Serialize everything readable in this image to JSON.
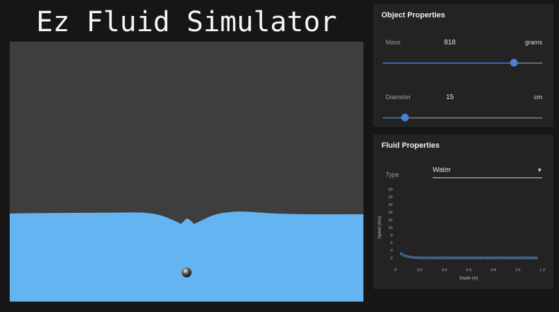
{
  "app": {
    "title": "Ez Fluid Simulator"
  },
  "object_properties": {
    "title": "Object Properties",
    "mass": {
      "label": "Mass",
      "value": "818",
      "unit": "grams",
      "slider_percent": 82
    },
    "diameter": {
      "label": "Diameter",
      "value": "15",
      "unit": "cm",
      "slider_percent": 14
    }
  },
  "fluid_properties": {
    "title": "Fluid Properties",
    "type": {
      "label": "Type",
      "selected": "Water",
      "caret_icon": "chevron-down-icon"
    }
  },
  "chart_data": {
    "type": "line",
    "title": "",
    "xlabel": "Depth (m)",
    "ylabel": "Speed (m/s)",
    "xlim": [
      0,
      1.2
    ],
    "ylim": [
      0,
      20
    ],
    "x_ticks": [
      {
        "v": 0,
        "label": "0"
      },
      {
        "v": 0.2,
        "label": "0.2"
      },
      {
        "v": 0.4,
        "label": "0.4"
      },
      {
        "v": 0.6,
        "label": "0.6"
      },
      {
        "v": 0.8,
        "label": "0.8"
      },
      {
        "v": 1.0,
        "label": "1.0"
      },
      {
        "v": 1.2,
        "label": "1.2"
      }
    ],
    "y_ticks": [
      2,
      4,
      6,
      8,
      10,
      12,
      14,
      16,
      18,
      20
    ],
    "grid": false,
    "legend": false,
    "marker": "circle",
    "series": [
      {
        "name": "speed-vs-depth",
        "x": [
          0.05,
          0.075,
          0.1,
          0.125,
          0.15,
          0.175,
          0.2,
          0.225,
          0.25,
          0.275,
          0.3,
          0.325,
          0.35,
          0.375,
          0.4,
          0.425,
          0.45,
          0.475,
          0.5,
          0.525,
          0.55,
          0.575,
          0.6,
          0.625,
          0.65,
          0.675,
          0.7,
          0.725,
          0.75,
          0.775,
          0.8,
          0.825,
          0.85,
          0.875,
          0.9,
          0.925,
          0.95,
          0.975,
          1.0,
          1.025,
          1.05,
          1.075,
          1.1,
          1.125,
          1.15
        ],
        "y": [
          3.1,
          2.62,
          2.38,
          2.22,
          2.12,
          2.07,
          2.04,
          2.02,
          2.01,
          2.0,
          2.0,
          2.0,
          2.0,
          2.0,
          2.0,
          2.0,
          2.0,
          2.0,
          2.0,
          2.0,
          2.0,
          2.0,
          2.0,
          2.0,
          2.0,
          2.0,
          2.0,
          2.0,
          2.0,
          2.0,
          2.0,
          2.0,
          2.0,
          2.0,
          2.0,
          2.0,
          2.0,
          2.0,
          2.0,
          2.0,
          2.0,
          2.0,
          2.0,
          2.0,
          2.0
        ]
      }
    ]
  },
  "colors": {
    "water": "#65b4f2",
    "sim_background": "#3e3e3e",
    "accent_blue": "#4d7fd9",
    "accent_blue_dim": "#3d6ab5",
    "chart_line": "#5b8fc7",
    "panel_background": "#232323",
    "page_background": "#161616"
  }
}
